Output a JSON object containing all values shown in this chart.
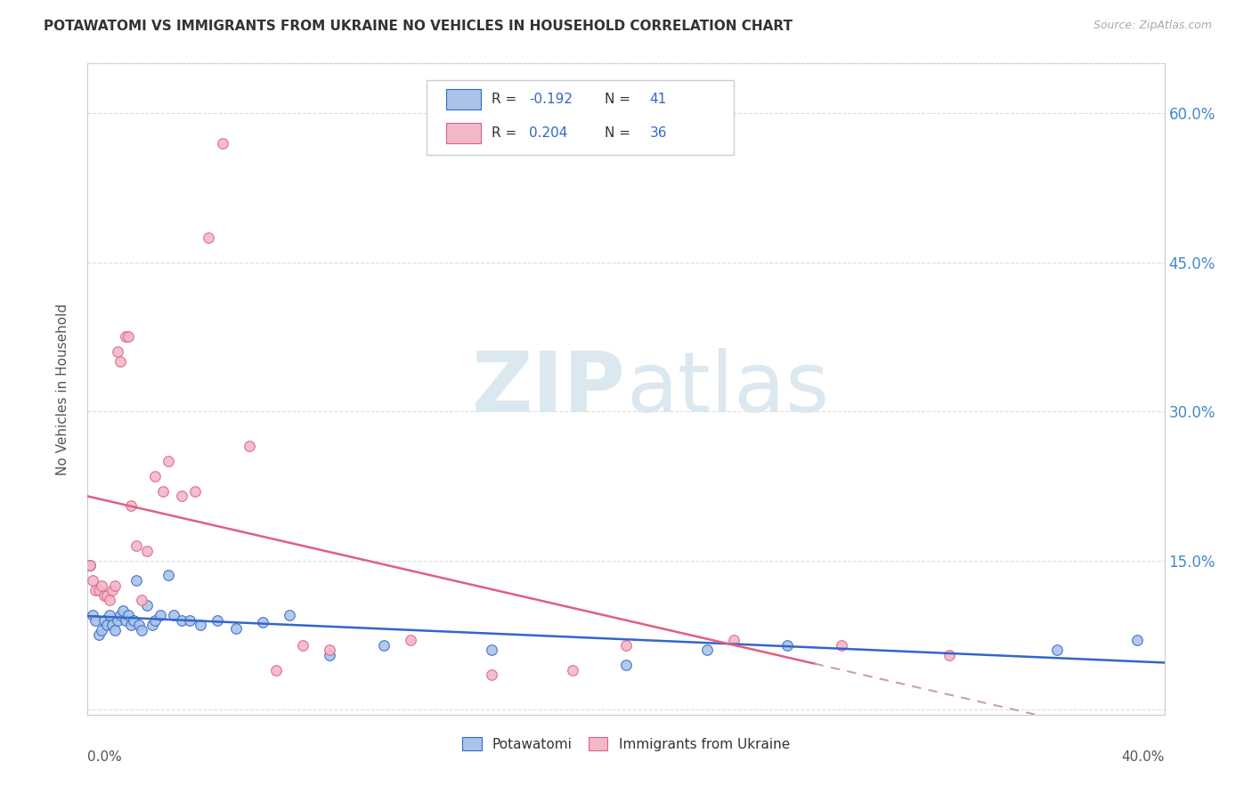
{
  "title": "POTAWATOMI VS IMMIGRANTS FROM UKRAINE NO VEHICLES IN HOUSEHOLD CORRELATION CHART",
  "source": "Source: ZipAtlas.com",
  "ylabel": "No Vehicles in Household",
  "xlim": [
    0.0,
    0.4
  ],
  "ylim": [
    -0.005,
    0.65
  ],
  "yticks": [
    0.0,
    0.15,
    0.3,
    0.45,
    0.6
  ],
  "ytick_labels": [
    "",
    "15.0%",
    "30.0%",
    "45.0%",
    "60.0%"
  ],
  "blue_color": "#aac4e8",
  "pink_color": "#f2b8ca",
  "blue_line_color": "#3366cc",
  "pink_line_color": "#e06080",
  "pink_dashed_color": "#c8a0b0",
  "watermark_color": "#dce8f0",
  "potawatomi_x": [
    0.001,
    0.002,
    0.003,
    0.004,
    0.005,
    0.006,
    0.007,
    0.008,
    0.009,
    0.01,
    0.011,
    0.012,
    0.013,
    0.014,
    0.015,
    0.016,
    0.017,
    0.018,
    0.019,
    0.02,
    0.022,
    0.024,
    0.025,
    0.027,
    0.03,
    0.032,
    0.035,
    0.038,
    0.042,
    0.048,
    0.055,
    0.065,
    0.075,
    0.09,
    0.11,
    0.15,
    0.2,
    0.23,
    0.26,
    0.36,
    0.39
  ],
  "potawatomi_y": [
    0.145,
    0.095,
    0.09,
    0.075,
    0.08,
    0.09,
    0.085,
    0.095,
    0.085,
    0.08,
    0.09,
    0.095,
    0.1,
    0.09,
    0.095,
    0.085,
    0.09,
    0.13,
    0.085,
    0.08,
    0.105,
    0.085,
    0.09,
    0.095,
    0.135,
    0.095,
    0.09,
    0.09,
    0.085,
    0.09,
    0.082,
    0.088,
    0.095,
    0.055,
    0.065,
    0.06,
    0.045,
    0.06,
    0.065,
    0.06,
    0.07
  ],
  "ukraine_x": [
    0.001,
    0.002,
    0.003,
    0.004,
    0.005,
    0.006,
    0.007,
    0.008,
    0.009,
    0.01,
    0.011,
    0.012,
    0.014,
    0.015,
    0.016,
    0.018,
    0.02,
    0.022,
    0.025,
    0.028,
    0.03,
    0.035,
    0.04,
    0.045,
    0.05,
    0.06,
    0.07,
    0.08,
    0.09,
    0.12,
    0.15,
    0.18,
    0.2,
    0.24,
    0.28,
    0.32
  ],
  "ukraine_y": [
    0.145,
    0.13,
    0.12,
    0.12,
    0.125,
    0.115,
    0.115,
    0.11,
    0.12,
    0.125,
    0.36,
    0.35,
    0.375,
    0.375,
    0.205,
    0.165,
    0.11,
    0.16,
    0.235,
    0.22,
    0.25,
    0.215,
    0.22,
    0.475,
    0.57,
    0.265,
    0.04,
    0.065,
    0.06,
    0.07,
    0.035,
    0.04,
    0.065,
    0.07,
    0.065,
    0.055
  ]
}
